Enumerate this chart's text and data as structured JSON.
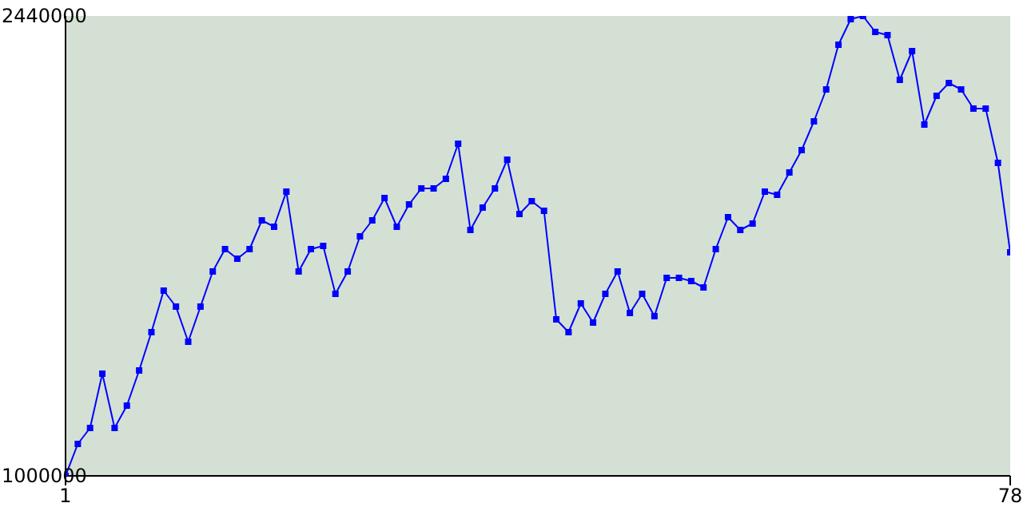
{
  "chart_data": {
    "type": "line",
    "x": [
      1,
      2,
      3,
      4,
      5,
      6,
      7,
      8,
      9,
      10,
      11,
      12,
      13,
      14,
      15,
      16,
      17,
      18,
      19,
      20,
      21,
      22,
      23,
      24,
      25,
      26,
      27,
      28,
      29,
      30,
      31,
      32,
      33,
      34,
      35,
      36,
      37,
      38,
      39,
      40,
      41,
      42,
      43,
      44,
      45,
      46,
      47,
      48,
      49,
      50,
      51,
      52,
      53,
      54,
      55,
      56,
      57,
      58,
      59,
      60,
      61,
      62,
      63,
      64,
      65,
      66,
      67,
      68,
      69,
      70,
      71,
      72,
      73,
      74,
      75,
      76,
      77,
      78
    ],
    "values": [
      1000000,
      1100000,
      1150000,
      1320000,
      1150000,
      1220000,
      1330000,
      1450000,
      1580000,
      1530000,
      1420000,
      1530000,
      1640000,
      1710000,
      1680000,
      1710000,
      1800000,
      1780000,
      1890000,
      1640000,
      1710000,
      1720000,
      1570000,
      1640000,
      1750000,
      1800000,
      1870000,
      1780000,
      1850000,
      1900000,
      1900000,
      1930000,
      2040000,
      1770000,
      1840000,
      1900000,
      1990000,
      1820000,
      1860000,
      1830000,
      1490000,
      1450000,
      1540000,
      1480000,
      1570000,
      1640000,
      1510000,
      1570000,
      1500000,
      1620000,
      1620000,
      1610000,
      1590000,
      1710000,
      1810000,
      1770000,
      1790000,
      1890000,
      1880000,
      1950000,
      2020000,
      2110000,
      2210000,
      2350000,
      2430000,
      2440000,
      2390000,
      2380000,
      2240000,
      2330000,
      2100000,
      2190000,
      2230000,
      2210000,
      2150000,
      2150000,
      1980000,
      1700000
    ],
    "color": "#0000ff",
    "xlim": [
      1,
      78
    ],
    "xticks": [
      1,
      78
    ],
    "ylim": [
      1000000,
      2440000
    ],
    "yticks": [
      1000000,
      2440000
    ],
    "grid": false,
    "marker": "square",
    "line_style": "solid"
  }
}
